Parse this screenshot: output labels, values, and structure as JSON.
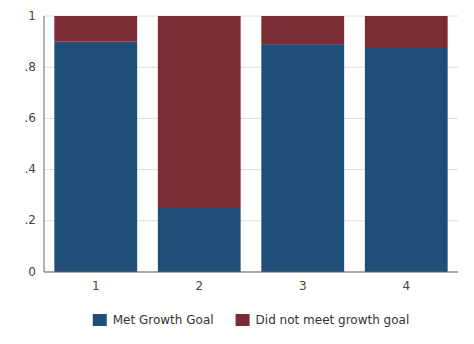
{
  "chart_data": {
    "type": "bar",
    "stacked": true,
    "categories": [
      "1",
      "2",
      "3",
      "4"
    ],
    "series": [
      {
        "name": "Met Growth Goal",
        "color": "#1F4E79",
        "values": [
          0.9,
          0.25,
          0.89,
          0.875
        ]
      },
      {
        "name": "Did not meet growth goal",
        "color": "#7B2C35",
        "values": [
          0.1,
          0.75,
          0.11,
          0.125
        ]
      }
    ],
    "ylim": [
      0,
      1.0
    ],
    "yticks": [
      0,
      {
        "value": 0.2,
        "label": ".2"
      },
      {
        "value": 0.4,
        "label": ".4"
      },
      {
        "value": 0.6,
        "label": ".6"
      },
      {
        "value": 0.8,
        "label": ".8"
      },
      1
    ],
    "grid": true,
    "legend": "bottom"
  }
}
